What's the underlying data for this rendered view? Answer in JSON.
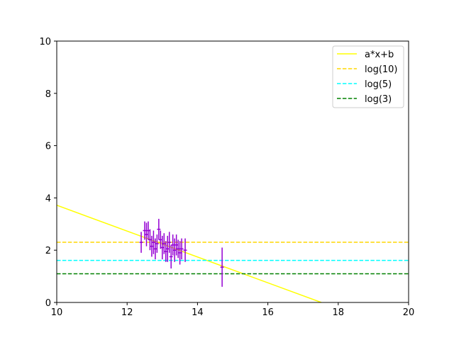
{
  "chart_data": {
    "type": "scatter",
    "xlim": [
      10,
      20
    ],
    "ylim": [
      0,
      10
    ],
    "x_ticks": [
      "10",
      "12",
      "14",
      "16",
      "18",
      "20"
    ],
    "y_ticks": [
      "0",
      "2",
      "4",
      "6",
      "8",
      "10"
    ],
    "grid": false,
    "legend_position": "top-right",
    "legend": [
      "a*x+b",
      "log(10)",
      "log(5)",
      "log(3)"
    ],
    "lines": [
      {
        "name": "a*x+b",
        "kind": "fit",
        "color": "#ffff00",
        "style": "solid",
        "x": [
          10,
          17.52
        ],
        "y": [
          3.72,
          0
        ]
      },
      {
        "name": "log(10)",
        "kind": "hline",
        "color": "#ffd700",
        "style": "dashed",
        "y": 2.303
      },
      {
        "name": "log(5)",
        "kind": "hline",
        "color": "#00ffff",
        "style": "dashed",
        "y": 1.609
      },
      {
        "name": "log(3)",
        "kind": "hline",
        "color": "#008000",
        "style": "dashed",
        "y": 1.099
      }
    ],
    "points": {
      "color": "#9400d3",
      "data": [
        {
          "x": 12.4,
          "y": 2.3,
          "xerr": 0.05,
          "yerr": 0.4
        },
        {
          "x": 12.5,
          "y": 2.75,
          "xerr": 0.05,
          "yerr": 0.35
        },
        {
          "x": 12.55,
          "y": 2.6,
          "xerr": 0.05,
          "yerr": 0.45
        },
        {
          "x": 12.6,
          "y": 2.75,
          "xerr": 0.05,
          "yerr": 0.35
        },
        {
          "x": 12.65,
          "y": 2.4,
          "xerr": 0.05,
          "yerr": 0.4
        },
        {
          "x": 12.7,
          "y": 2.15,
          "xerr": 0.05,
          "yerr": 0.4
        },
        {
          "x": 12.75,
          "y": 2.3,
          "xerr": 0.05,
          "yerr": 0.45
        },
        {
          "x": 12.8,
          "y": 2.05,
          "xerr": 0.05,
          "yerr": 0.4
        },
        {
          "x": 12.85,
          "y": 2.25,
          "xerr": 0.05,
          "yerr": 0.35
        },
        {
          "x": 12.9,
          "y": 2.8,
          "xerr": 0.05,
          "yerr": 0.4
        },
        {
          "x": 12.95,
          "y": 2.4,
          "xerr": 0.05,
          "yerr": 0.35
        },
        {
          "x": 13.0,
          "y": 2.1,
          "xerr": 0.05,
          "yerr": 0.45
        },
        {
          "x": 13.05,
          "y": 2.25,
          "xerr": 0.05,
          "yerr": 0.4
        },
        {
          "x": 13.1,
          "y": 1.95,
          "xerr": 0.05,
          "yerr": 0.4
        },
        {
          "x": 13.15,
          "y": 2.05,
          "xerr": 0.05,
          "yerr": 0.5
        },
        {
          "x": 13.2,
          "y": 2.3,
          "xerr": 0.05,
          "yerr": 0.4
        },
        {
          "x": 13.25,
          "y": 1.75,
          "xerr": 0.05,
          "yerr": 0.45
        },
        {
          "x": 13.3,
          "y": 2.2,
          "xerr": 0.05,
          "yerr": 0.4
        },
        {
          "x": 13.35,
          "y": 2.0,
          "xerr": 0.05,
          "yerr": 0.45
        },
        {
          "x": 13.4,
          "y": 2.2,
          "xerr": 0.05,
          "yerr": 0.4
        },
        {
          "x": 13.45,
          "y": 2.05,
          "xerr": 0.05,
          "yerr": 0.35
        },
        {
          "x": 13.5,
          "y": 1.9,
          "xerr": 0.05,
          "yerr": 0.45
        },
        {
          "x": 13.55,
          "y": 2.05,
          "xerr": 0.05,
          "yerr": 0.4
        },
        {
          "x": 13.65,
          "y": 2.0,
          "xerr": 0.05,
          "yerr": 0.45
        },
        {
          "x": 14.7,
          "y": 1.35,
          "xerr": 0.05,
          "yerr": 0.75
        }
      ]
    }
  }
}
